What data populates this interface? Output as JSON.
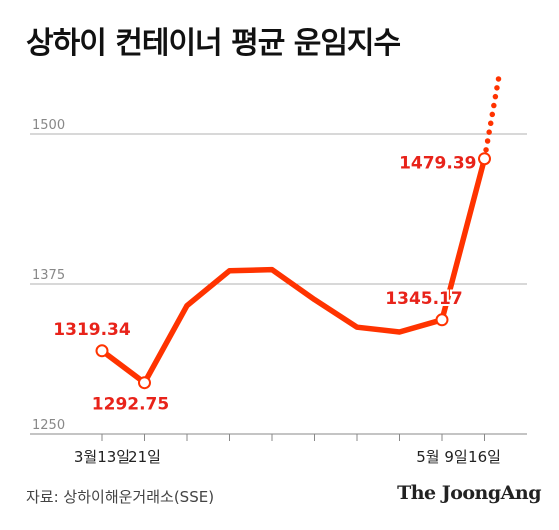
{
  "title": "상하이 컨테이너 평균 운임지수",
  "source": "자료: 상하이해운거래소(SSE)",
  "brand": "The JoongAng",
  "colors": {
    "line": "#ff3300",
    "label": "#e8231a",
    "grid": "#b0b0b0",
    "axis": "#888888",
    "tick_text": "#888888"
  },
  "chart_data": {
    "type": "line",
    "title": "상하이 컨테이너 평균 운임지수",
    "ylim": [
      1250,
      1560
    ],
    "yticks": [
      1250,
      1375,
      1500
    ],
    "grid": true,
    "x_tick_labels": [
      {
        "index": 0,
        "label": "3월13일"
      },
      {
        "index": 1,
        "label": "21일"
      },
      {
        "index": 8,
        "label": "5월 9일"
      },
      {
        "index": 9,
        "label": "16일"
      }
    ],
    "series": [
      {
        "values": [
          1319.34,
          1292.75,
          1357.0,
          1386.0,
          1387.0,
          1362.0,
          1339.0,
          1335.0,
          1345.17,
          1479.39
        ]
      }
    ],
    "projection": {
      "from_index": 9,
      "to_index": 9.35,
      "to_value": 1550
    },
    "data_labels": [
      {
        "index": 0,
        "text": "1319.34"
      },
      {
        "index": 1,
        "text": "1292.75"
      },
      {
        "index": 8,
        "text": "1345.17"
      },
      {
        "index": 9,
        "text": "1479.39"
      }
    ]
  }
}
